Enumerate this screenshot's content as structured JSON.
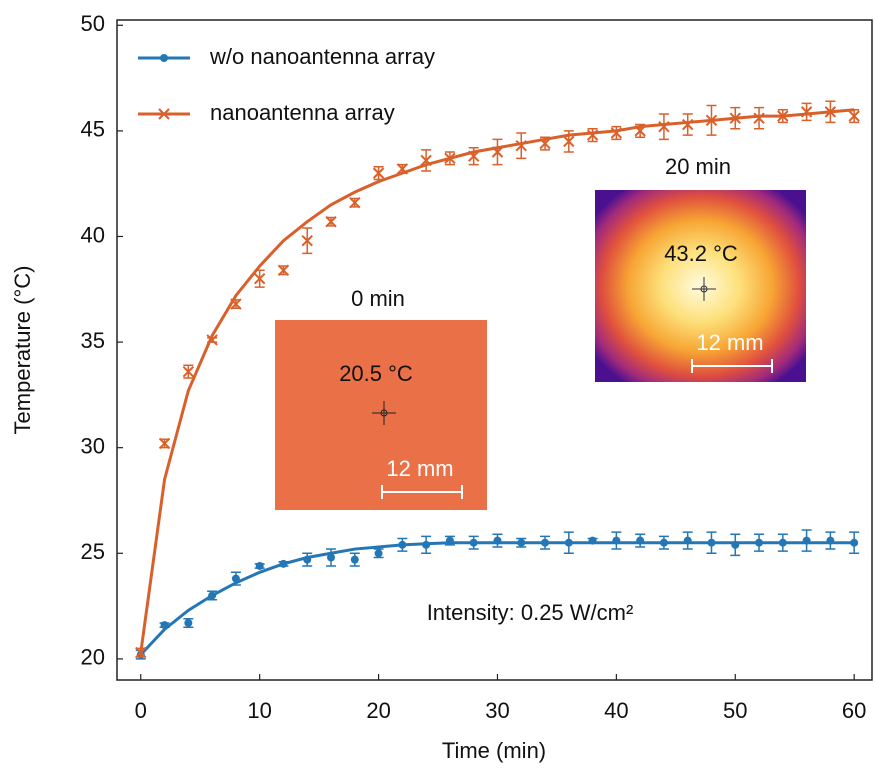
{
  "chart_data": {
    "type": "line",
    "x_label": "Time (min)",
    "y_label": "Temperature (°C)",
    "xlim": [
      -2,
      61.5
    ],
    "ylim": [
      19,
      50.25
    ],
    "xticks": [
      0,
      10,
      20,
      30,
      40,
      50,
      60
    ],
    "yticks": [
      20,
      25,
      30,
      35,
      40,
      45,
      50
    ],
    "legend": "upper left",
    "x": [
      0,
      2,
      4,
      6,
      8,
      10,
      12,
      14,
      16,
      18,
      20,
      22,
      24,
      26,
      28,
      30,
      32,
      34,
      36,
      38,
      40,
      42,
      44,
      46,
      48,
      50,
      52,
      54,
      56,
      58,
      60
    ],
    "series": [
      {
        "name": "w/o nanoantenna array",
        "color": "#2477b6",
        "marker": "dot",
        "values": [
          20.2,
          21.6,
          21.7,
          23.0,
          23.8,
          24.4,
          24.5,
          24.7,
          24.8,
          24.7,
          25.0,
          25.4,
          25.4,
          25.6,
          25.5,
          25.6,
          25.5,
          25.5,
          25.5,
          25.6,
          25.6,
          25.6,
          25.5,
          25.6,
          25.5,
          25.4,
          25.5,
          25.5,
          25.6,
          25.6,
          25.5
        ],
        "errors": [
          0.2,
          0.1,
          0.2,
          0.2,
          0.3,
          0.1,
          0.1,
          0.3,
          0.4,
          0.3,
          0.2,
          0.3,
          0.4,
          0.2,
          0.3,
          0.3,
          0.2,
          0.3,
          0.5,
          0.1,
          0.4,
          0.3,
          0.3,
          0.4,
          0.5,
          0.5,
          0.4,
          0.4,
          0.5,
          0.4,
          0.5
        ],
        "fit_values": [
          20.2,
          21.4,
          22.3,
          23.0,
          23.6,
          24.1,
          24.5,
          24.8,
          25.0,
          25.2,
          25.3,
          25.4,
          25.45,
          25.5,
          25.5,
          25.5,
          25.5,
          25.5,
          25.5,
          25.5,
          25.5,
          25.5,
          25.5,
          25.5,
          25.5,
          25.5,
          25.5,
          25.5,
          25.5,
          25.5,
          25.5
        ]
      },
      {
        "name": "nanoantenna array",
        "color": "#d9602a",
        "marker": "cross",
        "values": [
          20.3,
          30.2,
          33.6,
          35.1,
          36.8,
          38.0,
          38.4,
          39.8,
          40.7,
          41.6,
          43.0,
          43.2,
          43.6,
          43.7,
          43.8,
          44.0,
          44.3,
          44.4,
          44.5,
          44.8,
          44.9,
          45.0,
          45.2,
          45.3,
          45.5,
          45.6,
          45.6,
          45.7,
          45.9,
          45.9,
          45.7
        ],
        "errors": [
          0.2,
          0.2,
          0.3,
          0.1,
          0.2,
          0.4,
          0.2,
          0.6,
          0.2,
          0.2,
          0.3,
          0.2,
          0.5,
          0.3,
          0.4,
          0.6,
          0.6,
          0.3,
          0.5,
          0.3,
          0.3,
          0.3,
          0.6,
          0.5,
          0.7,
          0.5,
          0.5,
          0.3,
          0.4,
          0.5,
          0.3
        ],
        "fit_values": [
          20.3,
          28.5,
          32.7,
          35.3,
          37.2,
          38.6,
          39.8,
          40.7,
          41.5,
          42.1,
          42.6,
          43.0,
          43.4,
          43.7,
          44.0,
          44.2,
          44.4,
          44.6,
          44.8,
          44.9,
          45.0,
          45.2,
          45.3,
          45.4,
          45.5,
          45.6,
          45.7,
          45.7,
          45.8,
          45.9,
          46.0
        ]
      }
    ],
    "annotation": "Intensity: 0.25 W/cm²",
    "insets": [
      {
        "title": "0 min",
        "temperature": "20.5 °C",
        "scale_bar": "12 mm"
      },
      {
        "title": "20 min",
        "temperature": "43.2 °C",
        "scale_bar": "12 mm"
      }
    ]
  }
}
